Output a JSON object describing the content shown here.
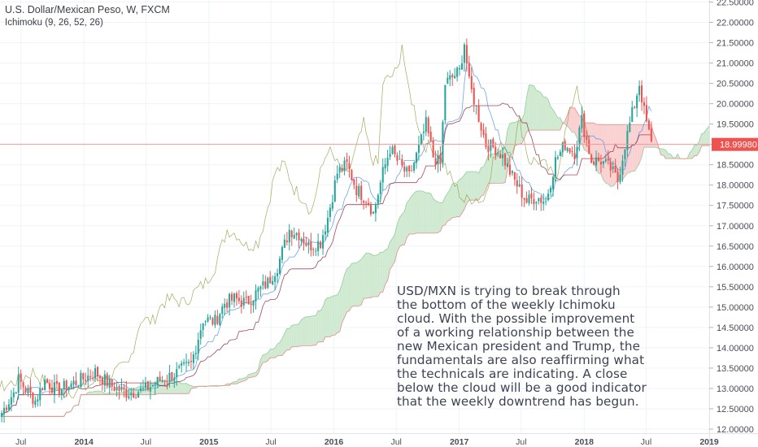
{
  "header": {
    "title": "U.S. Dollar/Mexican Peso, W, FXCM",
    "indicator": "Ichimoku (9, 26, 52, 26)"
  },
  "colors": {
    "up": "#26a69a",
    "down": "#ef5350",
    "cloud_bull": "#c8e6c9",
    "cloud_bear": "#f8c9c9",
    "conversion": "#4a90e2",
    "base": "#8b1a3a",
    "lagging": "#8a9a3a",
    "price_line": "#ef9a9a"
  },
  "chart_data": {
    "type": "candlestick",
    "title": "U.S. Dollar/Mexican Peso, W, FXCM",
    "indicator": "Ichimoku (9, 26, 52, 26)",
    "x_start": "2013-05",
    "x_end": "2019-01",
    "x_ticks": [
      "Jul",
      "2014",
      "Jul",
      "2015",
      "Jul",
      "2016",
      "Jul",
      "2017",
      "Jul",
      "2018",
      "Jul",
      "2019"
    ],
    "y_ticks": [
      "12.00000",
      "12.50000",
      "13.00000",
      "13.50000",
      "14.00000",
      "14.50000",
      "15.00000",
      "15.50000",
      "16.00000",
      "16.50000",
      "17.00000",
      "17.50000",
      "18.00000",
      "18.50000",
      "19.00000",
      "19.50000",
      "20.00000",
      "20.50000",
      "21.00000",
      "21.50000",
      "22.00000",
      "22.50000"
    ],
    "ylim": [
      11.9,
      22.55
    ],
    "last_price": "18.99980",
    "last_price_value": 18.9998,
    "price_path": [
      [
        "2013-05-06",
        12.4
      ],
      [
        "2013-06-10",
        12.9
      ],
      [
        "2013-06-24",
        13.2
      ],
      [
        "2013-08-12",
        12.7
      ],
      [
        "2013-09-09",
        13.2
      ],
      [
        "2013-10-14",
        12.95
      ],
      [
        "2013-11-25",
        13.1
      ],
      [
        "2014-01-13",
        13.3
      ],
      [
        "2014-02-03",
        13.4
      ],
      [
        "2014-03-24",
        13.05
      ],
      [
        "2014-05-05",
        12.9
      ],
      [
        "2014-06-23",
        12.95
      ],
      [
        "2014-08-11",
        13.2
      ],
      [
        "2014-09-22",
        13.35
      ],
      [
        "2014-11-10",
        13.6
      ],
      [
        "2014-12-15",
        14.7
      ],
      [
        "2015-01-19",
        14.65
      ],
      [
        "2015-02-16",
        15.1
      ],
      [
        "2015-03-16",
        15.2
      ],
      [
        "2015-04-20",
        15.1
      ],
      [
        "2015-05-25",
        15.4
      ],
      [
        "2015-06-22",
        15.6
      ],
      [
        "2015-07-20",
        16.0
      ],
      [
        "2015-08-24",
        16.9
      ],
      [
        "2015-09-21",
        16.8
      ],
      [
        "2015-10-19",
        16.5
      ],
      [
        "2015-11-23",
        16.6
      ],
      [
        "2015-12-14",
        17.2
      ],
      [
        "2016-01-11",
        18.3
      ],
      [
        "2016-02-08",
        18.5
      ],
      [
        "2016-03-07",
        17.9
      ],
      [
        "2016-04-11",
        17.6
      ],
      [
        "2016-04-25",
        17.3
      ],
      [
        "2016-05-23",
        18.3
      ],
      [
        "2016-06-13",
        18.9
      ],
      [
        "2016-07-11",
        18.5
      ],
      [
        "2016-08-08",
        18.2
      ],
      [
        "2016-09-05",
        18.9
      ],
      [
        "2016-09-26",
        19.5
      ],
      [
        "2016-10-17",
        18.7
      ],
      [
        "2016-11-07",
        18.5
      ],
      [
        "2016-11-21",
        20.5
      ],
      [
        "2017-01-02",
        20.8
      ],
      [
        "2017-01-16",
        21.5
      ],
      [
        "2017-01-30",
        20.5
      ],
      [
        "2017-02-20",
        19.9
      ],
      [
        "2017-03-20",
        19.0
      ],
      [
        "2017-04-17",
        18.9
      ],
      [
        "2017-05-08",
        18.7
      ],
      [
        "2017-06-05",
        18.2
      ],
      [
        "2017-06-26",
        17.9
      ],
      [
        "2017-07-17",
        17.6
      ],
      [
        "2017-08-14",
        17.7
      ],
      [
        "2017-09-11",
        17.6
      ],
      [
        "2017-10-09",
        18.6
      ],
      [
        "2017-11-06",
        19.0
      ],
      [
        "2017-12-04",
        18.8
      ],
      [
        "2017-12-25",
        19.6
      ],
      [
        "2018-01-22",
        18.6
      ],
      [
        "2018-02-19",
        18.6
      ],
      [
        "2018-03-19",
        18.4
      ],
      [
        "2018-04-09",
        18.1
      ],
      [
        "2018-04-30",
        19.0
      ],
      [
        "2018-05-28",
        20.0
      ],
      [
        "2018-06-11",
        20.5
      ],
      [
        "2018-06-25",
        19.8
      ],
      [
        "2018-07-16",
        19.0
      ]
    ]
  },
  "annotation": {
    "lines": [
      "USD/MXN is trying to break through",
      "the bottom of the weekly Ichimoku",
      "cloud. With the possible improvement",
      "of a working relationship between the",
      "new Mexican president and Trump, the",
      "fundamentals are also reaffirming what",
      "the technicals are indicating. A close",
      "below the cloud will be a good indicator",
      "that the weekly downtrend has begun."
    ]
  }
}
